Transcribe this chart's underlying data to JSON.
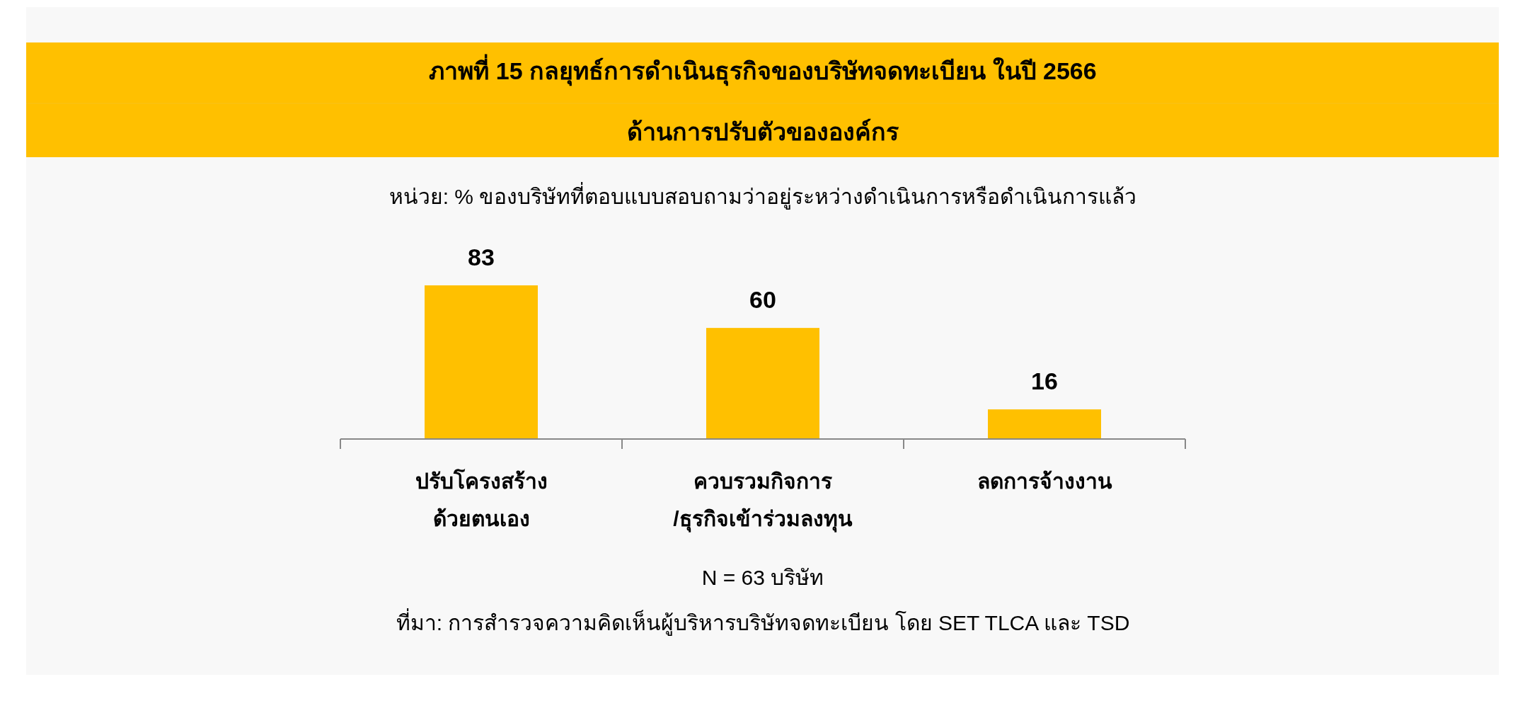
{
  "chart_data": {
    "type": "bar",
    "title": "ภาพที่ 15 กลยุทธ์การดำเนินธุรกิจของบริษัทจดทะเบียน ในปี 2566",
    "subtitle": "ด้านการปรับตัวขององค์กร",
    "categories": [
      "ปรับโครงสร้าง\nด้วยตนเอง",
      "ควบรวมกิจการ\n/ธุรกิจเข้าร่วมลงทุน",
      "ลดการจ้างงาน"
    ],
    "values": [
      83,
      60,
      16
    ],
    "color": "#ffc000",
    "data_labels": true,
    "annotations": [
      "หน่วย: % ของบริษัทที่ตอบแบบสอบถามว่าอยู่ระหว่างดำเนินการหรือดำเนินการแล้ว",
      "N = 63 บริษัท",
      "ที่มา: การสำรวจความคิดเห็นผู้บริหารบริษัทจดทะเบียน โดย SET TLCA และ TSD"
    ]
  }
}
